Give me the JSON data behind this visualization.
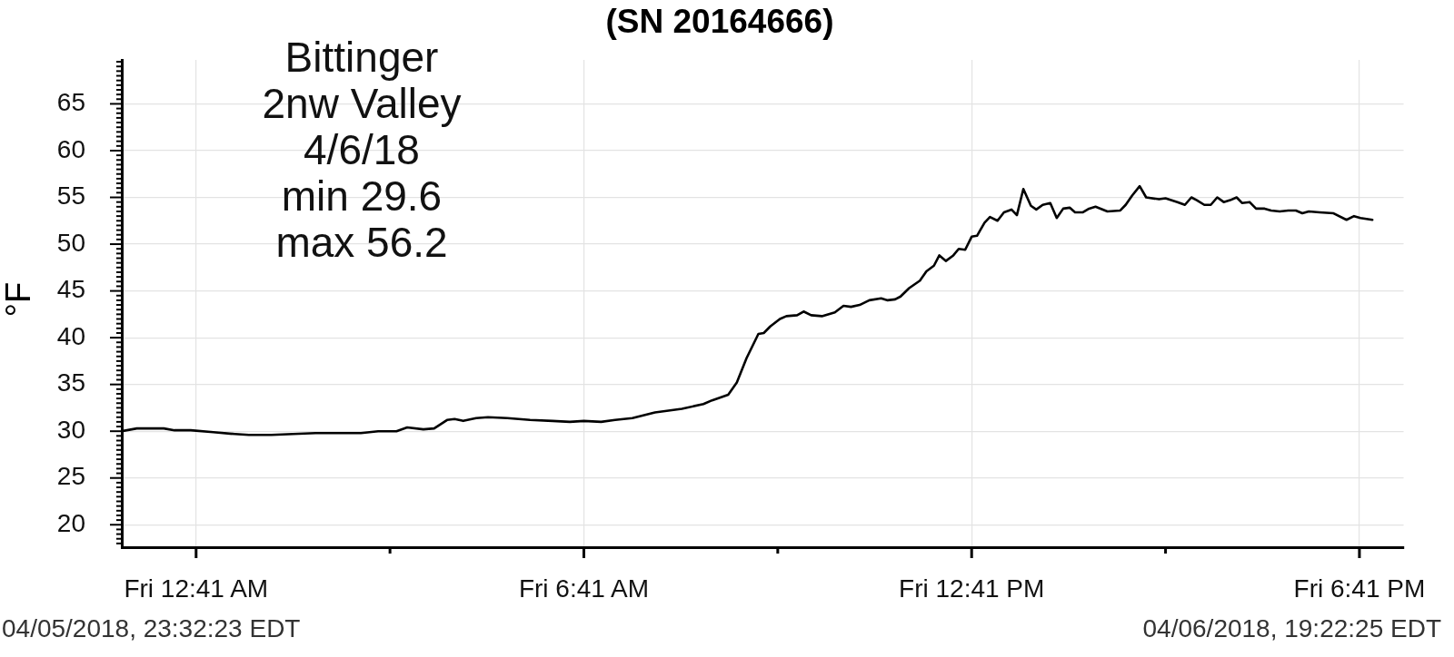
{
  "chart_data": {
    "type": "line",
    "title": "(SN 20164666)",
    "ylabel": "°F",
    "annotations": [
      "Bittinger\n2nw Valley\n4/6/18\nmin 29.6\nmax 56.2",
      "04/05/2018, 23:32:23 EDT",
      "04/06/2018, 19:22:25 EDT"
    ],
    "x": [
      "2018-04-05T23:32",
      "2018-04-05T23:46",
      "2018-04-06T00:11",
      "2018-04-06T00:21",
      "2018-04-06T00:36",
      "2018-04-06T00:57",
      "2018-04-06T01:17",
      "2018-04-06T01:30",
      "2018-04-06T01:51",
      "2018-04-06T02:11",
      "2018-04-06T02:32",
      "2018-04-06T02:53",
      "2018-04-06T03:14",
      "2018-04-06T03:30",
      "2018-04-06T03:47",
      "2018-04-06T03:57",
      "2018-04-06T04:12",
      "2018-04-06T04:22",
      "2018-04-06T04:34",
      "2018-04-06T04:41",
      "2018-04-06T04:49",
      "2018-04-06T05:01",
      "2018-04-06T05:12",
      "2018-04-06T05:30",
      "2018-04-06T05:51",
      "2018-04-06T06:12",
      "2018-04-06T06:28",
      "2018-04-06T06:41",
      "2018-04-06T06:57",
      "2018-04-06T07:10",
      "2018-04-06T07:26",
      "2018-04-06T07:47",
      "2018-04-06T08:12",
      "2018-04-06T08:32",
      "2018-04-06T08:40",
      "2018-04-06T08:55",
      "2018-04-06T09:03",
      "2018-04-06T09:12",
      "2018-04-06T09:23",
      "2018-04-06T09:28",
      "2018-04-06T09:34",
      "2018-04-06T09:43",
      "2018-04-06T09:49",
      "2018-04-06T09:59",
      "2018-04-06T10:05",
      "2018-04-06T10:12",
      "2018-04-06T10:22",
      "2018-04-06T10:34",
      "2018-04-06T10:42",
      "2018-04-06T10:49",
      "2018-04-06T10:57",
      "2018-04-06T11:06",
      "2018-04-06T11:17",
      "2018-04-06T11:23",
      "2018-04-06T11:30",
      "2018-04-06T11:35",
      "2018-04-06T11:43",
      "2018-04-06T11:53",
      "2018-04-06T11:59",
      "2018-04-06T12:06",
      "2018-04-06T12:11",
      "2018-04-06T12:17",
      "2018-04-06T12:24",
      "2018-04-06T12:29",
      "2018-04-06T12:35",
      "2018-04-06T12:41",
      "2018-04-06T12:46",
      "2018-04-06T12:53",
      "2018-04-06T12:58",
      "2018-04-06T13:05",
      "2018-04-06T13:11",
      "2018-04-06T13:18",
      "2018-04-06T13:23",
      "2018-04-06T13:29",
      "2018-04-06T13:36",
      "2018-04-06T13:41",
      "2018-04-06T13:47",
      "2018-04-06T13:54",
      "2018-04-06T14:00",
      "2018-04-06T14:06",
      "2018-04-06T14:12",
      "2018-04-06T14:17",
      "2018-04-06T14:24",
      "2018-04-06T14:30",
      "2018-04-06T14:36",
      "2018-04-06T14:47",
      "2018-04-06T14:59",
      "2018-04-06T15:04",
      "2018-04-06T15:10",
      "2018-04-06T15:17",
      "2018-04-06T15:23",
      "2018-04-06T15:35",
      "2018-04-06T15:41",
      "2018-04-06T15:52",
      "2018-04-06T15:59",
      "2018-04-06T16:05",
      "2018-04-06T16:10",
      "2018-04-06T16:17",
      "2018-04-06T16:23",
      "2018-04-06T16:29",
      "2018-04-06T16:35",
      "2018-04-06T16:41",
      "2018-04-06T16:47",
      "2018-04-06T16:52",
      "2018-04-06T16:59",
      "2018-04-06T17:05",
      "2018-04-06T17:13",
      "2018-04-06T17:19",
      "2018-04-06T17:27",
      "2018-04-06T17:35",
      "2018-04-06T17:42",
      "2018-04-06T17:48",
      "2018-04-06T17:54",
      "2018-04-06T18:04",
      "2018-04-06T18:17",
      "2018-04-06T18:29",
      "2018-04-06T18:36",
      "2018-04-06T18:42",
      "2018-04-06T18:53"
    ],
    "series": [
      {
        "color": "#000000",
        "values": [
          30.0,
          30.3,
          30.3,
          30.1,
          30.1,
          29.9,
          29.7,
          29.6,
          29.6,
          29.7,
          29.8,
          29.8,
          29.8,
          30.0,
          30.0,
          30.4,
          30.2,
          30.3,
          31.2,
          31.3,
          31.1,
          31.4,
          31.5,
          31.4,
          31.2,
          31.1,
          31.0,
          31.1,
          31.0,
          31.2,
          31.4,
          32.0,
          32.4,
          32.9,
          33.3,
          33.9,
          35.2,
          37.8,
          40.4,
          40.5,
          41.2,
          42.0,
          42.3,
          42.4,
          42.8,
          42.4,
          42.3,
          42.7,
          43.4,
          43.3,
          43.5,
          44.0,
          44.2,
          44.0,
          44.1,
          44.4,
          45.3,
          46.1,
          47.1,
          47.7,
          48.8,
          48.2,
          48.8,
          49.5,
          49.4,
          50.8,
          50.9,
          52.3,
          52.9,
          52.5,
          53.4,
          53.7,
          53.1,
          55.9,
          54.1,
          53.7,
          54.2,
          54.4,
          52.8,
          53.8,
          53.9,
          53.4,
          53.4,
          53.8,
          54.0,
          53.5,
          53.6,
          54.2,
          55.2,
          56.2,
          55.0,
          54.8,
          54.9,
          54.5,
          54.2,
          55.0,
          54.7,
          54.2,
          54.2,
          55.0,
          54.5,
          54.7,
          55.0,
          54.4,
          54.5,
          53.8,
          53.8,
          53.6,
          53.5,
          53.6,
          53.6,
          53.3,
          53.5,
          53.4,
          53.3,
          52.6,
          53.0,
          52.8,
          52.6
        ]
      }
    ],
    "xlim": [
      "2018-04-05T23:32",
      "2018-04-06T19:22"
    ],
    "xticks": [
      {
        "value": "2018-04-06T00:41",
        "label": "Fri 12:41 AM"
      },
      {
        "value": "2018-04-06T03:41",
        "label": null
      },
      {
        "value": "2018-04-06T06:41",
        "label": "Fri 6:41 AM"
      },
      {
        "value": "2018-04-06T09:41",
        "label": null
      },
      {
        "value": "2018-04-06T12:41",
        "label": "Fri 12:41 PM"
      },
      {
        "value": "2018-04-06T15:41",
        "label": null
      },
      {
        "value": "2018-04-06T18:41",
        "label": "Fri 6:41 PM"
      }
    ],
    "ylim": [
      17.6,
      69.7
    ],
    "yticks": [
      {
        "value": 18,
        "label": null
      },
      {
        "value": 18.5,
        "label": null
      },
      {
        "value": 19,
        "label": null
      },
      {
        "value": 19.5,
        "label": null
      },
      20,
      {
        "value": 20.5,
        "label": null
      },
      {
        "value": 21,
        "label": null
      },
      {
        "value": 21.5,
        "label": null
      },
      {
        "value": 22,
        "label": null
      },
      {
        "value": 22.5,
        "label": null
      },
      {
        "value": 23,
        "label": null
      },
      {
        "value": 23.5,
        "label": null
      },
      {
        "value": 24,
        "label": null
      },
      {
        "value": 24.5,
        "label": null
      },
      25,
      {
        "value": 25.5,
        "label": null
      },
      {
        "value": 26,
        "label": null
      },
      {
        "value": 26.5,
        "label": null
      },
      {
        "value": 27,
        "label": null
      },
      {
        "value": 27.5,
        "label": null
      },
      {
        "value": 28,
        "label": null
      },
      {
        "value": 28.5,
        "label": null
      },
      {
        "value": 29,
        "label": null
      },
      {
        "value": 29.5,
        "label": null
      },
      30,
      {
        "value": 30.5,
        "label": null
      },
      {
        "value": 31,
        "label": null
      },
      {
        "value": 31.5,
        "label": null
      },
      {
        "value": 32,
        "label": null
      },
      {
        "value": 32.5,
        "label": null
      },
      {
        "value": 33,
        "label": null
      },
      {
        "value": 33.5,
        "label": null
      },
      {
        "value": 34,
        "label": null
      },
      {
        "value": 34.5,
        "label": null
      },
      35,
      {
        "value": 35.5,
        "label": null
      },
      {
        "value": 36,
        "label": null
      },
      {
        "value": 36.5,
        "label": null
      },
      {
        "value": 37,
        "label": null
      },
      {
        "value": 37.5,
        "label": null
      },
      {
        "value": 38,
        "label": null
      },
      {
        "value": 38.5,
        "label": null
      },
      {
        "value": 39,
        "label": null
      },
      {
        "value": 39.5,
        "label": null
      },
      40,
      {
        "value": 40.5,
        "label": null
      },
      {
        "value": 41,
        "label": null
      },
      {
        "value": 41.5,
        "label": null
      },
      {
        "value": 42,
        "label": null
      },
      {
        "value": 42.5,
        "label": null
      },
      {
        "value": 43,
        "label": null
      },
      {
        "value": 43.5,
        "label": null
      },
      {
        "value": 44,
        "label": null
      },
      {
        "value": 44.5,
        "label": null
      },
      45,
      {
        "value": 45.5,
        "label": null
      },
      {
        "value": 46,
        "label": null
      },
      {
        "value": 46.5,
        "label": null
      },
      {
        "value": 47,
        "label": null
      },
      {
        "value": 47.5,
        "label": null
      },
      {
        "value": 48,
        "label": null
      },
      {
        "value": 48.5,
        "label": null
      },
      {
        "value": 49,
        "label": null
      },
      {
        "value": 49.5,
        "label": null
      },
      50,
      {
        "value": 50.5,
        "label": null
      },
      {
        "value": 51,
        "label": null
      },
      {
        "value": 51.5,
        "label": null
      },
      {
        "value": 52,
        "label": null
      },
      {
        "value": 52.5,
        "label": null
      },
      {
        "value": 53,
        "label": null
      },
      {
        "value": 53.5,
        "label": null
      },
      {
        "value": 54,
        "label": null
      },
      {
        "value": 54.5,
        "label": null
      },
      55,
      {
        "value": 55.5,
        "label": null
      },
      {
        "value": 56,
        "label": null
      },
      {
        "value": 56.5,
        "label": null
      },
      {
        "value": 57,
        "label": null
      },
      {
        "value": 57.5,
        "label": null
      },
      {
        "value": 58,
        "label": null
      },
      {
        "value": 58.5,
        "label": null
      },
      {
        "value": 59,
        "label": null
      },
      {
        "value": 59.5,
        "label": null
      },
      60,
      {
        "value": 60.5,
        "label": null
      },
      {
        "value": 61,
        "label": null
      },
      {
        "value": 61.5,
        "label": null
      },
      {
        "value": 62,
        "label": null
      },
      {
        "value": 62.5,
        "label": null
      },
      {
        "value": 63,
        "label": null
      },
      {
        "value": 63.5,
        "label": null
      },
      {
        "value": 64,
        "label": null
      },
      {
        "value": 64.5,
        "label": null
      },
      65,
      {
        "value": 65.5,
        "label": null
      },
      {
        "value": 66,
        "label": null
      },
      {
        "value": 66.5,
        "label": null
      },
      {
        "value": 67,
        "label": null
      },
      {
        "value": 67.5,
        "label": null
      },
      {
        "value": 68,
        "label": null
      },
      {
        "value": 68.5,
        "label": null
      },
      {
        "value": 69,
        "label": null
      },
      {
        "value": 69.5,
        "label": null
      }
    ],
    "grid": true
  }
}
